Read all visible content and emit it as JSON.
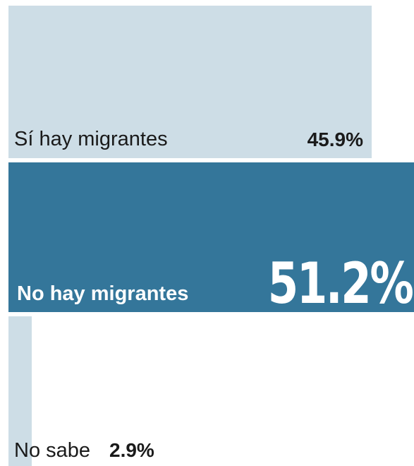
{
  "chart_data": {
    "type": "bar",
    "orientation": "horizontal-area",
    "categories": [
      "Sí hay migrantes",
      "No hay migrantes",
      "No sabe"
    ],
    "values": [
      45.9,
      51.2,
      2.9
    ],
    "value_labels": [
      "45.9%",
      "51.2%",
      "2.9%"
    ],
    "highlight_index": 1,
    "colors": [
      "#cddde6",
      "#34769a",
      "#cddde6"
    ]
  }
}
